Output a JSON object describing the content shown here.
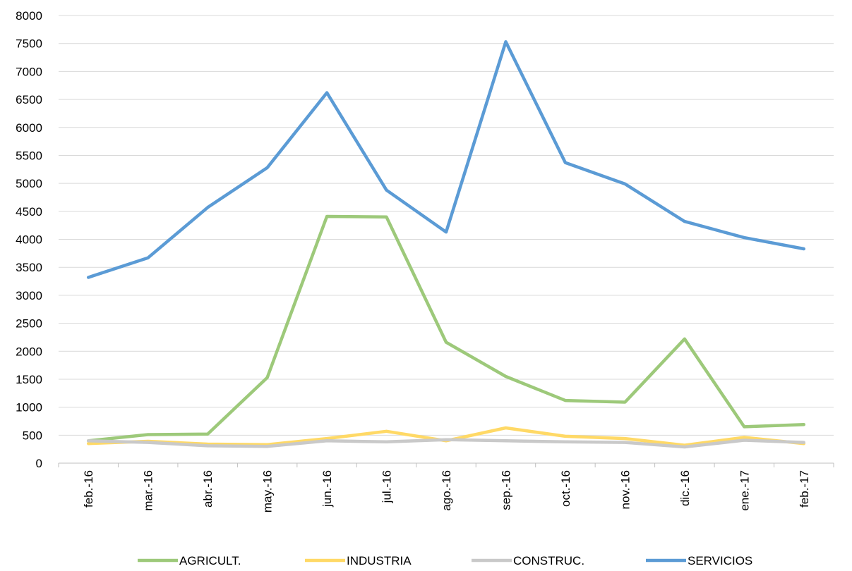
{
  "chart_data": {
    "type": "line",
    "categories": [
      "feb.-16",
      "mar.-16",
      "abr.-16",
      "may.-16",
      "jun.-16",
      "jul.-16",
      "ago.-16",
      "sep.-16",
      "oct.-16",
      "nov.-16",
      "dic.-16",
      "ene.-17",
      "feb.-17"
    ],
    "ylim": [
      0,
      8000
    ],
    "yticks": [
      0,
      500,
      1000,
      1500,
      2000,
      2500,
      3000,
      3500,
      4000,
      4500,
      5000,
      5500,
      6000,
      6500,
      7000,
      7500,
      8000
    ],
    "grid": true,
    "legend_position": "bottom",
    "series": [
      {
        "name": "AGRICULT.",
        "color": "#9DC97A",
        "values": [
          400,
          510,
          520,
          1530,
          4410,
          4400,
          2160,
          1550,
          1120,
          1090,
          2220,
          650,
          690
        ]
      },
      {
        "name": "INDUSTRIA",
        "color": "#FFD966",
        "values": [
          350,
          390,
          340,
          330,
          440,
          570,
          400,
          630,
          480,
          440,
          320,
          460,
          350
        ]
      },
      {
        "name": "CONSTRUC.",
        "color": "#C9C9C9",
        "values": [
          400,
          370,
          310,
          300,
          400,
          380,
          420,
          400,
          380,
          370,
          290,
          410,
          370
        ]
      },
      {
        "name": "SERVICIOS",
        "color": "#5B9BD5",
        "values": [
          3320,
          3670,
          4570,
          5280,
          6620,
          4880,
          4130,
          7530,
          5370,
          4990,
          4320,
          4030,
          3830
        ]
      }
    ]
  }
}
